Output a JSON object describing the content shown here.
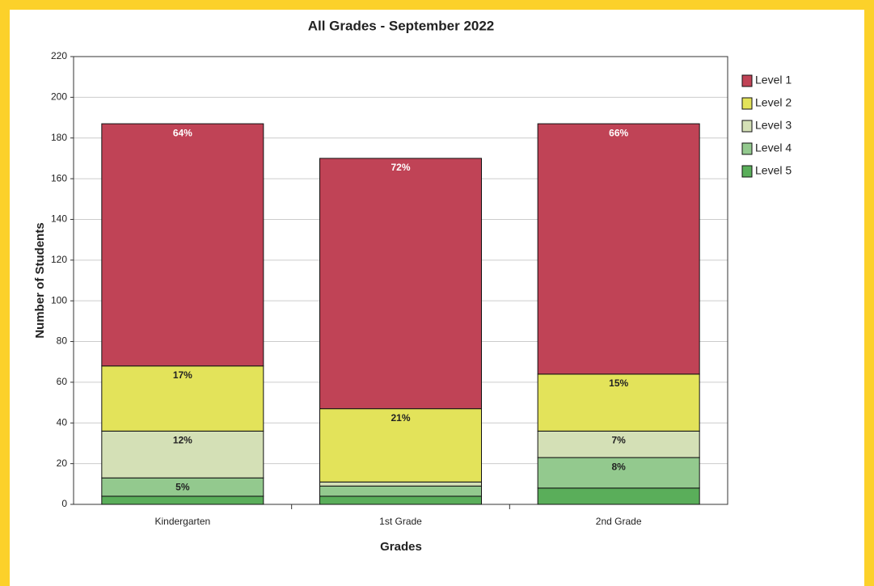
{
  "chart_data": {
    "type": "stacked_bar",
    "title": "All Grades - September 2022",
    "xlabel": "Grades",
    "ylabel": "Number of Students",
    "categories": [
      "Kindergarten",
      "1st Grade",
      "2nd Grade"
    ],
    "series": [
      {
        "name": "Level 1",
        "color": "#c04356",
        "values": [
          119,
          123,
          123
        ],
        "value_labels": [
          "64%",
          "72%",
          "66%"
        ]
      },
      {
        "name": "Level 2",
        "color": "#e3e35a",
        "values": [
          32,
          36,
          28
        ],
        "value_labels": [
          "17%",
          "21%",
          "15%"
        ]
      },
      {
        "name": "Level 3",
        "color": "#d4e0b6",
        "values": [
          23,
          2,
          13
        ],
        "value_labels": [
          "12%",
          null,
          "7%"
        ]
      },
      {
        "name": "Level 4",
        "color": "#93c98e",
        "values": [
          9,
          5,
          15
        ],
        "value_labels": [
          "5%",
          null,
          "8%"
        ]
      },
      {
        "name": "Level 5",
        "color": "#5aae5a",
        "values": [
          4,
          4,
          8
        ],
        "value_labels": [
          null,
          null,
          null
        ]
      }
    ],
    "ylim": [
      0,
      220
    ],
    "yticks": [
      0,
      20,
      40,
      60,
      80,
      100,
      120,
      140,
      160,
      180,
      200,
      220
    ],
    "grid": true,
    "legend": "right"
  }
}
